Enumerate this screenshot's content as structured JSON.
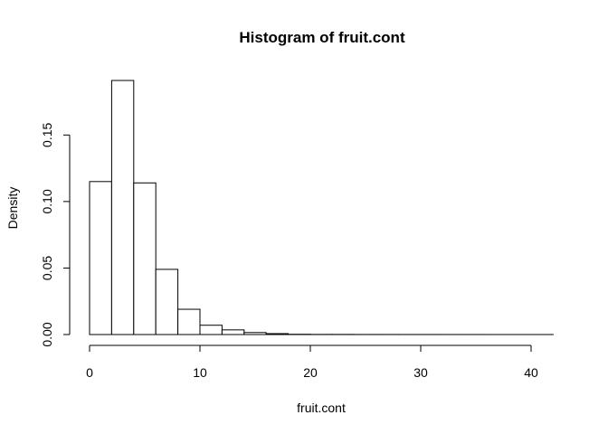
{
  "chart_data": {
    "type": "bar",
    "title": "Histogram of fruit.cont",
    "xlabel": "fruit.cont",
    "ylabel": "Density",
    "bin_width": 2,
    "x_bins": [
      [
        0,
        2
      ],
      [
        2,
        4
      ],
      [
        4,
        6
      ],
      [
        6,
        8
      ],
      [
        8,
        10
      ],
      [
        10,
        12
      ],
      [
        12,
        14
      ],
      [
        14,
        16
      ],
      [
        16,
        18
      ],
      [
        18,
        20
      ],
      [
        20,
        22
      ],
      [
        22,
        24
      ],
      [
        24,
        26
      ],
      [
        26,
        28
      ],
      [
        28,
        30
      ],
      [
        30,
        32
      ],
      [
        32,
        34
      ],
      [
        34,
        36
      ],
      [
        36,
        38
      ],
      [
        38,
        40
      ],
      [
        40,
        42
      ]
    ],
    "values": [
      0.115,
      0.191,
      0.114,
      0.049,
      0.019,
      0.007,
      0.0035,
      0.0015,
      0.0007,
      0.0002,
      0.0001,
      0.0001,
      5e-05,
      5e-05,
      3e-05,
      3e-05,
      2e-05,
      2e-05,
      1e-05,
      1e-05,
      1e-05
    ],
    "x_ticks": [
      0,
      10,
      20,
      30,
      40
    ],
    "y_ticks": [
      0.0,
      0.05,
      0.1,
      0.15
    ],
    "x_tick_labels": [
      "0",
      "10",
      "20",
      "30",
      "40"
    ],
    "y_tick_labels": [
      "0.00",
      "0.05",
      "0.10",
      "0.15"
    ],
    "xlim": [
      0,
      42
    ],
    "ylim": [
      0,
      0.191
    ],
    "grid": false,
    "bar_fill": "#ffffff",
    "bar_stroke": "#000000"
  }
}
